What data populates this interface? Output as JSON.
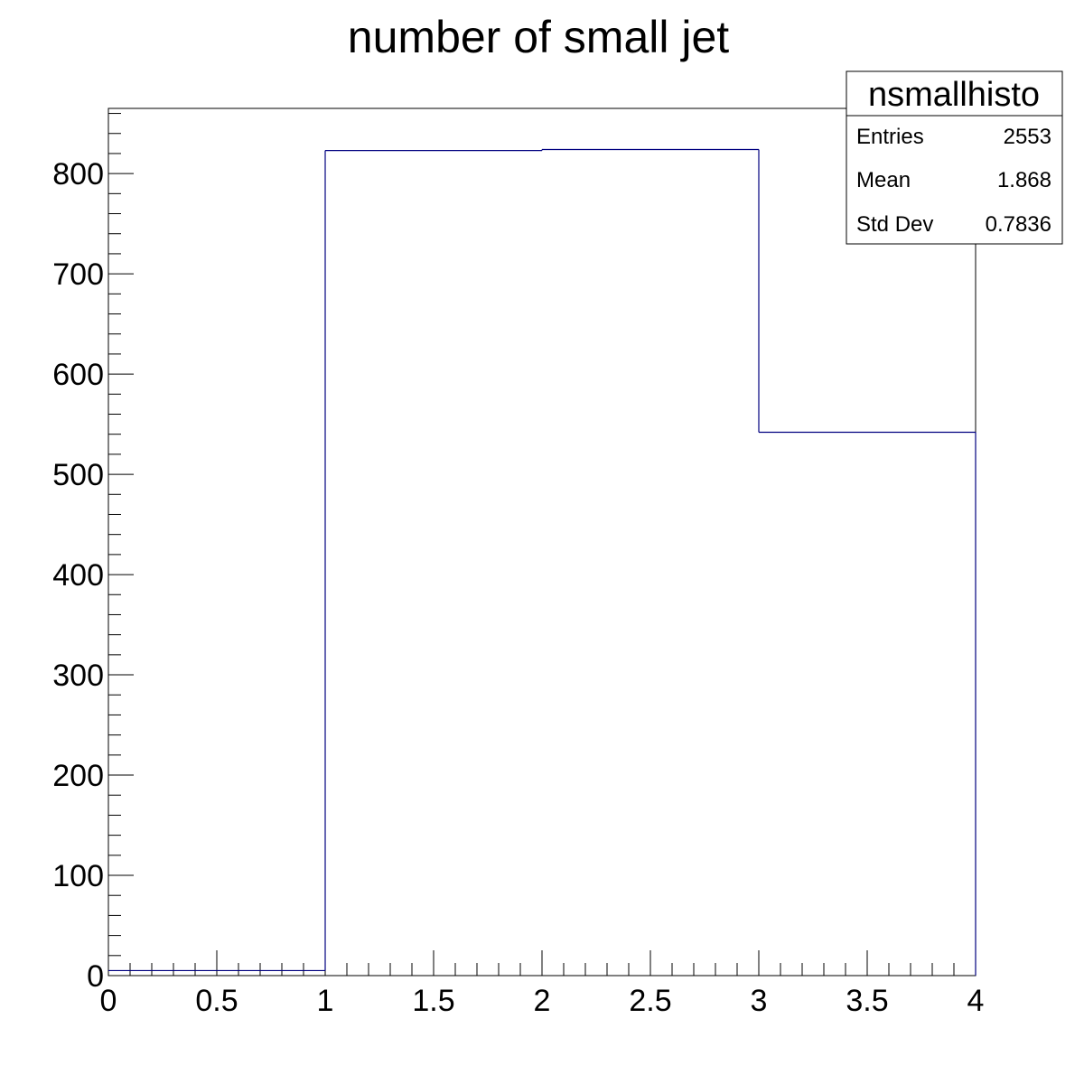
{
  "chart_data": {
    "type": "histogram",
    "title": "number of small jet",
    "xlabel": "",
    "ylabel": "",
    "xlim": [
      0,
      4
    ],
    "ylim": [
      0,
      865
    ],
    "bins": [
      {
        "low": 0,
        "high": 1,
        "value": 5
      },
      {
        "low": 1,
        "high": 2,
        "value": 823
      },
      {
        "low": 2,
        "high": 3,
        "value": 824
      },
      {
        "low": 3,
        "high": 4,
        "value": 542
      }
    ],
    "x_ticks": [
      "0",
      "0.5",
      "1",
      "1.5",
      "2",
      "2.5",
      "3",
      "3.5",
      "4"
    ],
    "y_ticks": [
      "0",
      "100",
      "200",
      "300",
      "400",
      "500",
      "600",
      "700",
      "800"
    ],
    "line_color": "#000080",
    "stats_box": {
      "name": "nsmallhisto",
      "rows": [
        {
          "label": "Entries",
          "value": "2553"
        },
        {
          "label": "Mean",
          "value": "1.868"
        },
        {
          "label": "Std Dev",
          "value": "0.7836"
        }
      ]
    }
  }
}
